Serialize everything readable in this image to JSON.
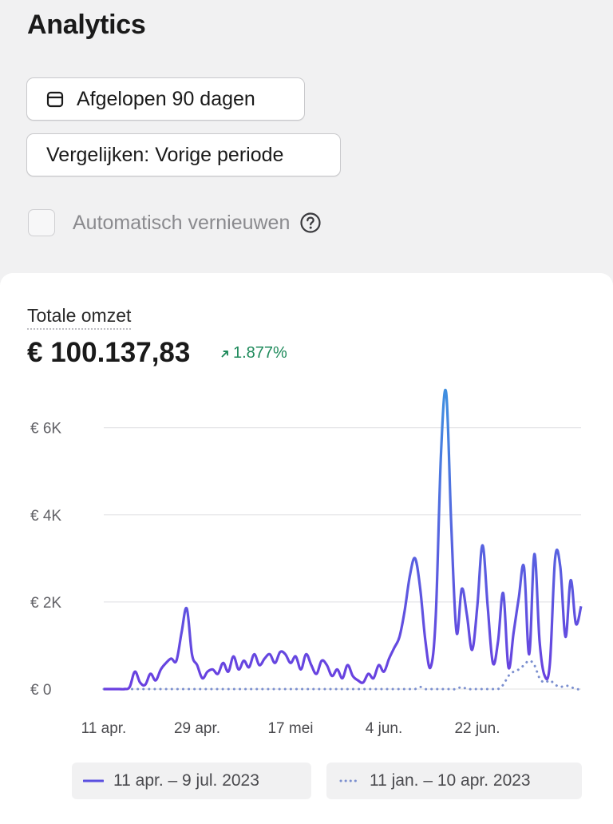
{
  "page": {
    "title": "Analytics"
  },
  "controls": {
    "date_range_label": "Afgelopen 90 dagen",
    "compare_label": "Vergelijken: Vorige periode",
    "auto_refresh_label": "Automatisch vernieuwen",
    "auto_refresh_checked": false
  },
  "metric": {
    "label": "Totale omzet",
    "value": "€ 100.137,83",
    "change": "1.877%",
    "change_color": "#1e8a5b"
  },
  "icons": {
    "date_range": "calendar-icon",
    "help": "question-circle-icon",
    "change": "arrow-up-right-icon"
  },
  "chart_data": {
    "type": "line",
    "x_ticks": [
      "11 apr.",
      "29 apr.",
      "17 mei",
      "4 jun.",
      "22 jun."
    ],
    "y_ticks": [
      "€ 0",
      "€ 2K",
      "€ 4K",
      "€ 6K"
    ],
    "ylim": [
      0,
      6800
    ],
    "grid": true,
    "legend_position": "bottom",
    "series": [
      {
        "name": "11 apr. – 9 jul. 2023",
        "color": "#5a4fe0",
        "style": "solid",
        "values": [
          0,
          0,
          0,
          0,
          0,
          50,
          400,
          150,
          100,
          350,
          200,
          450,
          600,
          700,
          650,
          1300,
          1850,
          800,
          550,
          250,
          400,
          450,
          350,
          600,
          400,
          750,
          450,
          650,
          500,
          800,
          550,
          700,
          800,
          600,
          850,
          800,
          600,
          750,
          450,
          800,
          550,
          350,
          650,
          550,
          300,
          450,
          250,
          550,
          300,
          200,
          150,
          350,
          250,
          550,
          400,
          700,
          950,
          1200,
          1800,
          2600,
          3000,
          2300,
          1100,
          500,
          1700,
          5400,
          6800,
          3700,
          1300,
          2300,
          1700,
          900,
          1900,
          3300,
          1900,
          600,
          1100,
          2200,
          500,
          1300,
          2100,
          2800,
          800,
          3100,
          1100,
          300,
          600,
          3000,
          2800,
          1200,
          2500,
          1500,
          1900
        ]
      },
      {
        "name": "11 jan. – 10 apr. 2023",
        "color": "#7b8fcf",
        "style": "dotted",
        "values": [
          0,
          0,
          0,
          0,
          0,
          0,
          0,
          0,
          0,
          0,
          0,
          0,
          0,
          0,
          0,
          0,
          0,
          0,
          0,
          0,
          0,
          0,
          0,
          0,
          0,
          0,
          0,
          0,
          0,
          0,
          0,
          0,
          0,
          0,
          0,
          0,
          0,
          0,
          0,
          0,
          0,
          0,
          0,
          0,
          0,
          0,
          0,
          0,
          0,
          0,
          0,
          0,
          0,
          0,
          0,
          0,
          0,
          0,
          0,
          0,
          0,
          50,
          0,
          0,
          0,
          0,
          0,
          0,
          0,
          50,
          0,
          0,
          0,
          0,
          0,
          0,
          0,
          100,
          300,
          400,
          450,
          550,
          650,
          550,
          250,
          150,
          200,
          100,
          50,
          80,
          50,
          0,
          0
        ]
      }
    ]
  }
}
